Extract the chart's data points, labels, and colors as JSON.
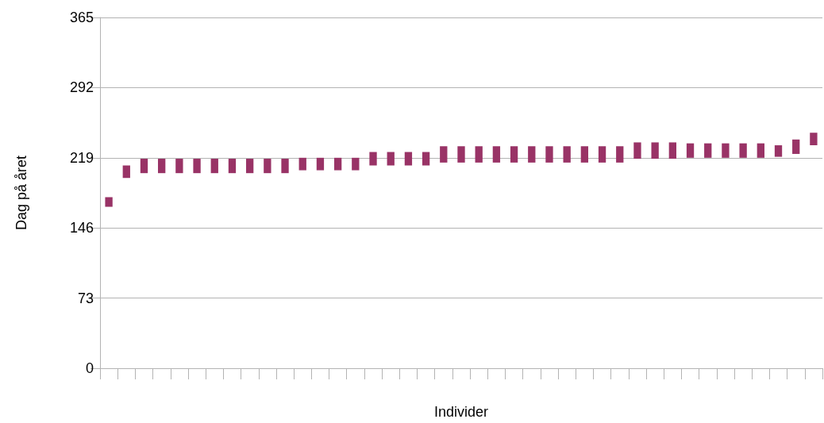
{
  "chart_data": {
    "type": "bar",
    "xlabel": "Individer",
    "ylabel": "Dag på året",
    "categories": [
      null,
      null,
      null,
      null,
      null,
      null,
      null,
      null,
      null,
      null,
      null,
      null,
      null,
      null,
      null,
      null,
      null,
      null,
      null,
      null,
      null,
      null,
      null,
      null,
      null,
      null,
      null,
      null,
      null,
      null,
      null,
      null,
      null,
      null,
      null,
      null,
      null,
      null,
      null,
      null,
      null
    ],
    "base": [
      168,
      198,
      203,
      203,
      203,
      203,
      203,
      203,
      203,
      203,
      203,
      206,
      206,
      206,
      206,
      211,
      211,
      211,
      211,
      214,
      214,
      214,
      214,
      214,
      214,
      214,
      214,
      214,
      214,
      214,
      218,
      218,
      218,
      219,
      219,
      219,
      219,
      219,
      220,
      223,
      232
    ],
    "values": [
      10,
      13,
      15,
      15,
      15,
      15,
      15,
      15,
      15,
      15,
      15,
      13,
      13,
      13,
      13,
      14,
      14,
      14,
      14,
      17,
      17,
      17,
      17,
      17,
      17,
      17,
      17,
      17,
      17,
      17,
      17,
      17,
      17,
      15,
      15,
      15,
      15,
      15,
      12,
      15,
      13
    ],
    "color": "#993366",
    "ylim": [
      0,
      365
    ],
    "yticks": [
      0,
      73,
      146,
      219,
      292,
      365
    ],
    "grid": "y"
  }
}
